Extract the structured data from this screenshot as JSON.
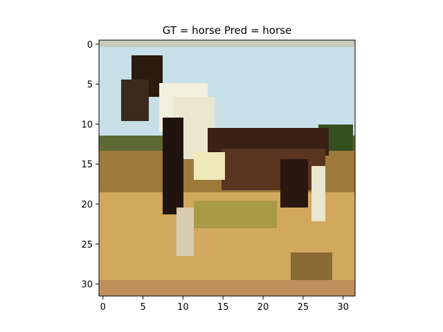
{
  "figure": {
    "title": "GT = horse Pred = horse"
  },
  "axes": {
    "x_ticks": [
      "0",
      "5",
      "10",
      "15",
      "20",
      "25",
      "30"
    ],
    "y_ticks": [
      "0",
      "5",
      "10",
      "15",
      "20",
      "25",
      "30"
    ],
    "x_range": [
      -0.5,
      31.5
    ],
    "y_range": [
      -0.5,
      31.5
    ]
  },
  "image": {
    "description_colors": {
      "sky": "#c4dfe6",
      "horse_dark": "#2a1b12",
      "horse_white": "#eeeedd",
      "grass": "#d3a65a",
      "grass_dark": "#7f6a2a",
      "trees": "#3b5220"
    }
  }
}
